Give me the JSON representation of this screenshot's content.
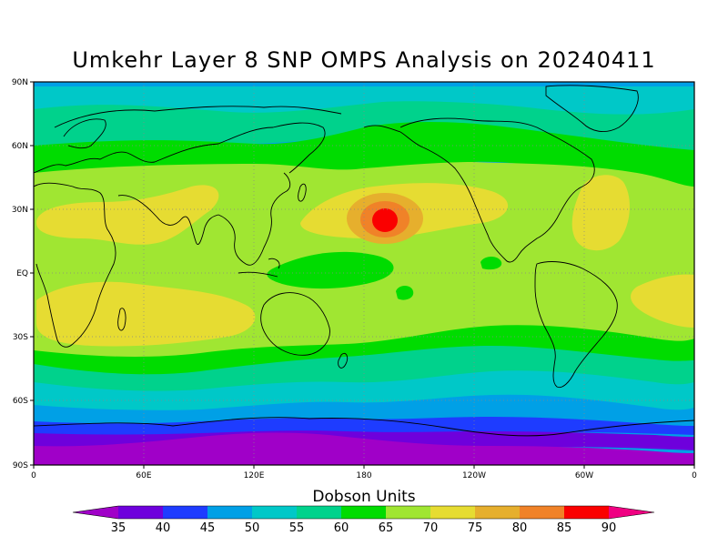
{
  "title": "Umkehr Layer 8 SNP OMPS Analysis on 20240411",
  "lat_ticks": [
    "90N",
    "60N",
    "30N",
    "EQ",
    "30S",
    "60S",
    "90S"
  ],
  "lon_ticks": [
    "0",
    "60E",
    "120E",
    "180",
    "120W",
    "60W",
    "0"
  ],
  "colorbar": {
    "title": "Dobson Units",
    "labels": [
      "35",
      "40",
      "45",
      "50",
      "55",
      "60",
      "65",
      "70",
      "75",
      "80",
      "85",
      "90"
    ],
    "colors": [
      "#a000c8",
      "#6e00dc",
      "#1e3cff",
      "#00a0e6",
      "#00c8c8",
      "#00d28c",
      "#00dc00",
      "#a0e632",
      "#e6dc32",
      "#e6af2d",
      "#f08228",
      "#fa0000",
      "#f00082"
    ]
  },
  "map_colors": {
    "c35": "#a000c8",
    "c40": "#6e00dc",
    "c45": "#1e3cff",
    "c50": "#00a0e6",
    "c55": "#00c8c8",
    "c60": "#00d28c",
    "c65": "#00dc00",
    "c70": "#a0e632",
    "c75": "#e6dc32",
    "c80": "#e6af2d",
    "c85": "#f08228",
    "c90": "#fa0000"
  }
}
